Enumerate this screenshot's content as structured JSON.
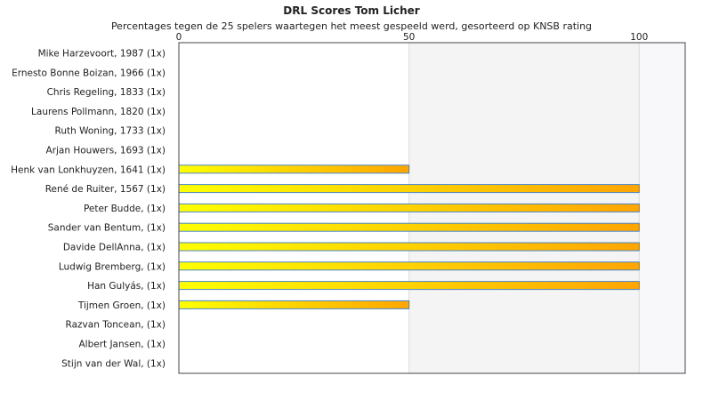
{
  "chart_data": {
    "type": "bar",
    "orientation": "horizontal",
    "title": "DRL Scores Tom Licher",
    "subtitle": "Percentages tegen de 25 spelers waartegen het meest gespeeld werd, gesorteerd op KNSB rating",
    "xlim": [
      0,
      110
    ],
    "x_ticks": [
      0,
      50,
      100
    ],
    "grid": "vertical bands",
    "categories": [
      "Mike Harzevoort, 1987 (1x)",
      "Ernesto Bonne Boizan, 1966 (1x)",
      "Chris Regeling, 1833 (1x)",
      "Laurens Pollmann, 1820 (1x)",
      "Ruth Woning, 1733 (1x)",
      "Arjan Houwers, 1693 (1x)",
      "Henk van Lonkhuyzen, 1641 (1x)",
      "René de Ruiter, 1567 (1x)",
      "Peter Budde,  (1x)",
      "Sander van Bentum,  (1x)",
      "Davide DellAnna,  (1x)",
      "Ludwig Bremberg,  (1x)",
      "Han Gulyás,  (1x)",
      "Tijmen Groen,  (1x)",
      "Razvan Toncean,  (1x)",
      "Albert Jansen,  (1x)",
      "Stijn van der Wal,  (1x)"
    ],
    "values": [
      0,
      0,
      0,
      0,
      0,
      0,
      50,
      100,
      100,
      100,
      100,
      100,
      100,
      50,
      0,
      0,
      0
    ],
    "colors": {
      "bar_start": "#ffff00",
      "bar_end": "#ffa500",
      "bar_stroke": "#4a86c8",
      "band_light": "#f4f4f4",
      "band_lighter": "#f8f8fb",
      "axis": "#444444",
      "grid_line": "#dcdcdc"
    }
  }
}
